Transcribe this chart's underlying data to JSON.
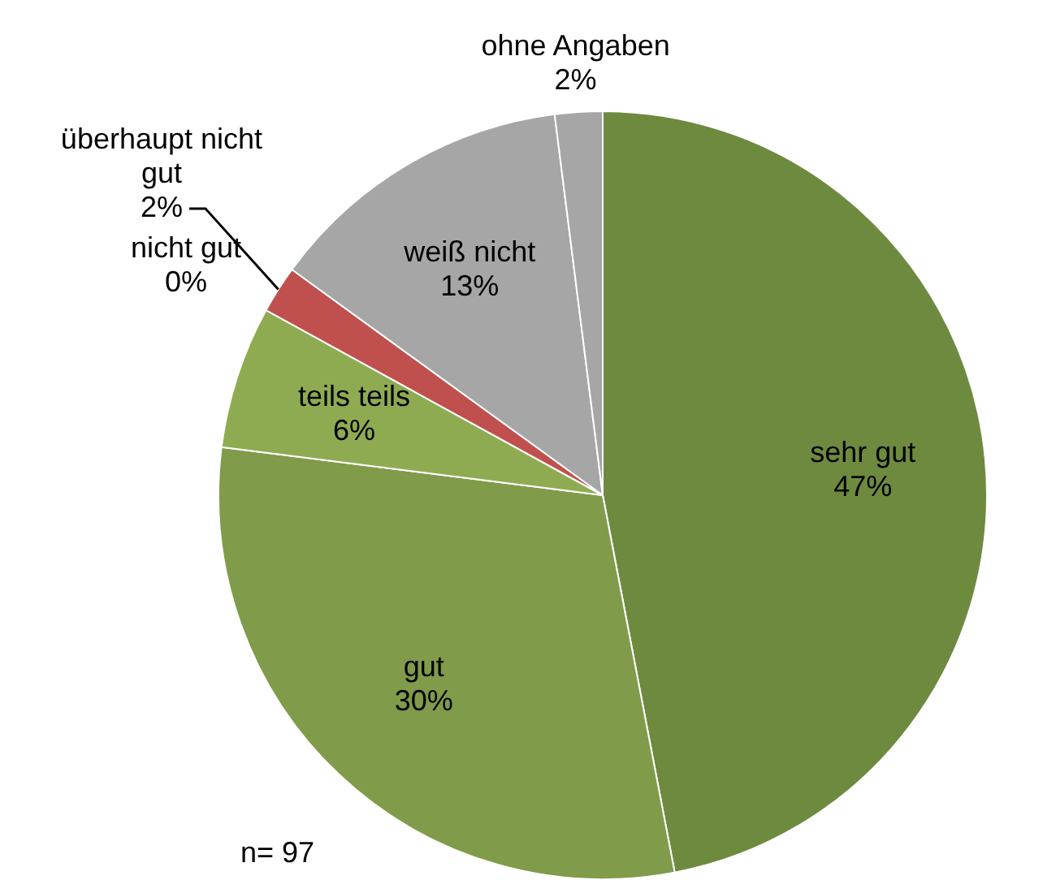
{
  "chart_data": {
    "type": "pie",
    "categories": [
      "sehr gut",
      "gut",
      "teils teils",
      "nicht gut",
      "überhaupt nicht gut",
      "weiß nicht",
      "ohne Angaben"
    ],
    "values": [
      47,
      30,
      6,
      0,
      2,
      13,
      2
    ],
    "colors": [
      "#6e8a3f",
      "#809b4a",
      "#8fab52",
      "#9bbb59",
      "#c0504d",
      "#a6a6a6",
      "#a6a6a6"
    ],
    "value_labels": [
      "47%",
      "30%",
      "6%",
      "0%",
      "2%",
      "13%",
      "2%"
    ],
    "legend": false,
    "annotations": [
      "n= 97"
    ]
  }
}
